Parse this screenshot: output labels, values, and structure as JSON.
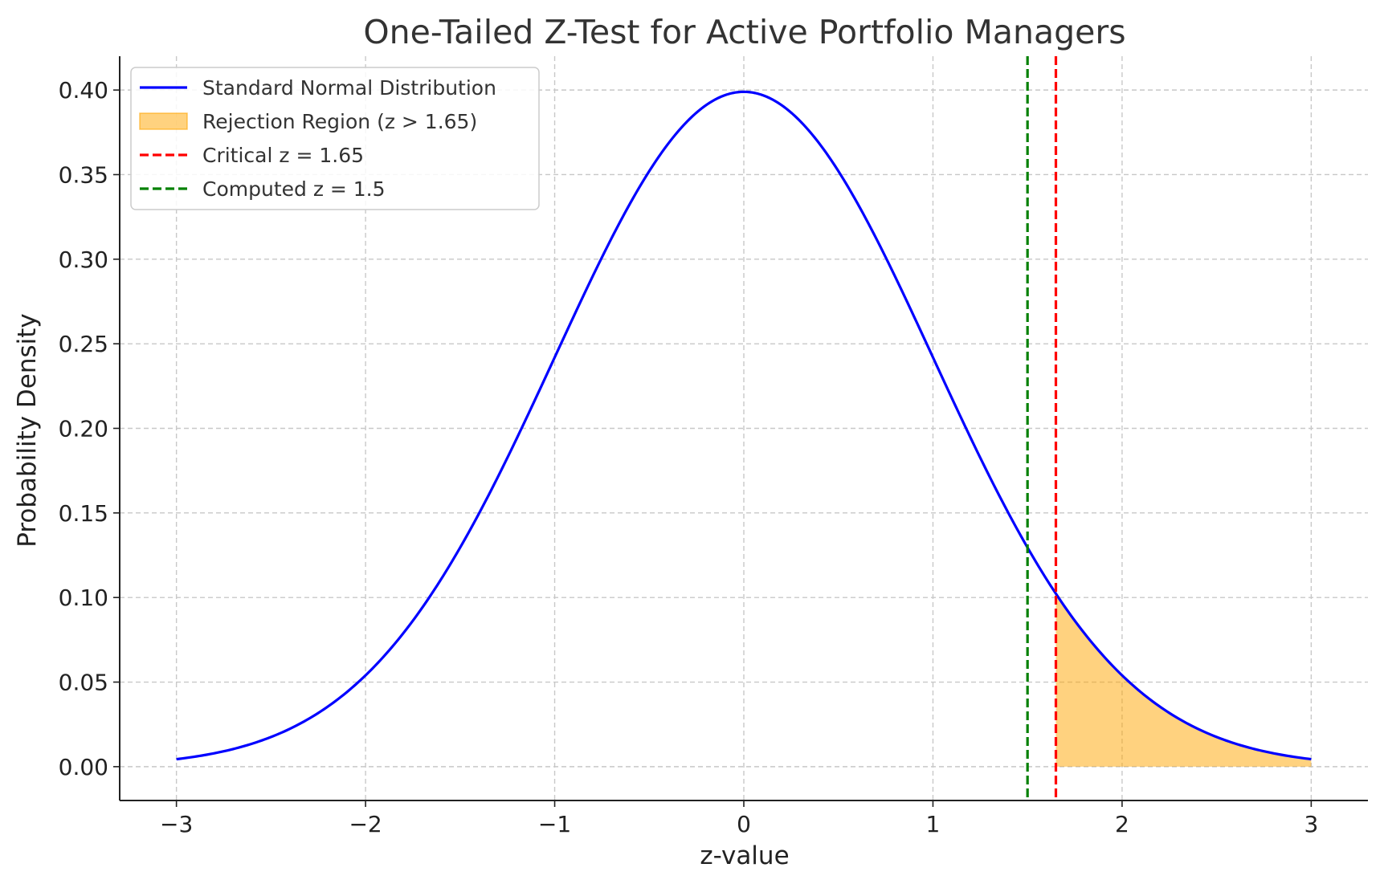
{
  "chart_data": {
    "type": "line",
    "title": "One-Tailed Z-Test for Active Portfolio Managers",
    "xlabel": "z-value",
    "ylabel": "Probability Density",
    "xlim": [
      -3.3,
      3.3
    ],
    "ylim": [
      -0.02,
      0.42
    ],
    "xticks": [
      -3,
      -2,
      -1,
      0,
      1,
      2,
      3
    ],
    "xtick_labels": [
      "−3",
      "−2",
      "−1",
      "0",
      "1",
      "2",
      "3"
    ],
    "yticks": [
      0.0,
      0.05,
      0.1,
      0.15,
      0.2,
      0.25,
      0.3,
      0.35,
      0.4
    ],
    "ytick_labels": [
      "0.00",
      "0.05",
      "0.10",
      "0.15",
      "0.20",
      "0.25",
      "0.30",
      "0.35",
      "0.40"
    ],
    "grid": true,
    "legend_position": "top-left",
    "series": [
      {
        "name": "Standard Normal Distribution",
        "kind": "line",
        "color": "#0000ff",
        "x": [
          -3.0,
          -2.75,
          -2.5,
          -2.25,
          -2.0,
          -1.75,
          -1.5,
          -1.25,
          -1.0,
          -0.75,
          -0.5,
          -0.25,
          0.0,
          0.25,
          0.5,
          0.75,
          1.0,
          1.25,
          1.5,
          1.75,
          2.0,
          2.25,
          2.5,
          2.75,
          3.0
        ],
        "y": [
          0.0044,
          0.0091,
          0.0175,
          0.0317,
          0.054,
          0.0863,
          0.1295,
          0.1826,
          0.242,
          0.3011,
          0.3521,
          0.3867,
          0.3989,
          0.3867,
          0.3521,
          0.3011,
          0.242,
          0.1826,
          0.1295,
          0.0863,
          0.054,
          0.0317,
          0.0175,
          0.0091,
          0.0044
        ]
      },
      {
        "name": "Rejection Region (z > 1.65)",
        "kind": "area",
        "color": "#ffa500",
        "x": [
          1.65,
          1.75,
          2.0,
          2.25,
          2.5,
          2.75,
          3.0
        ],
        "y": [
          0.1023,
          0.0863,
          0.054,
          0.0317,
          0.0175,
          0.0091,
          0.0044
        ]
      },
      {
        "name": "Critical z = 1.65",
        "kind": "vline",
        "color": "#ff0000",
        "x": 1.65
      },
      {
        "name": "Computed z = 1.5",
        "kind": "vline",
        "color": "#008000",
        "x": 1.5
      }
    ]
  }
}
